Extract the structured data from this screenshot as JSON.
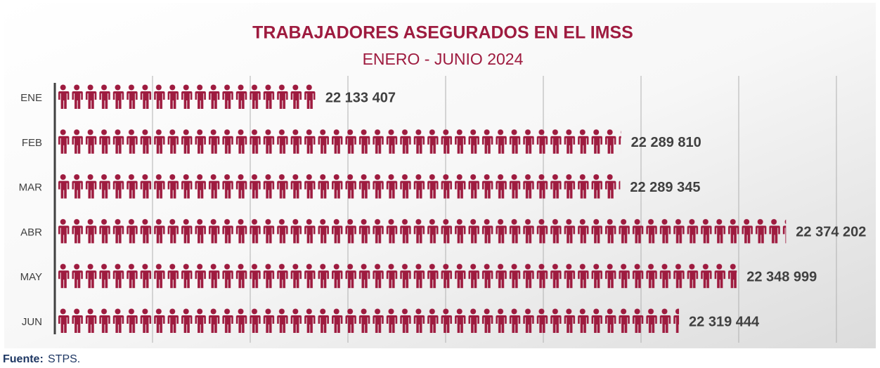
{
  "chart_data": {
    "type": "pictograph_bar",
    "title": "TRABAJADORES ASEGURADOS EN EL IMSS",
    "subtitle": "ENERO - JUNIO 2024",
    "categories": [
      "ENE",
      "FEB",
      "MAR",
      "ABR",
      "MAY",
      "JUN"
    ],
    "values": [
      22133407,
      22289810,
      22289345,
      22374202,
      22348999,
      22319444
    ],
    "value_labels": [
      "22 133 407",
      "22 289 810",
      "22 289 345",
      "22 374 202",
      "22 348 999",
      "22 319 444"
    ],
    "color": "#9e1b3f",
    "xlim": [
      22000000,
      22400000
    ],
    "xticks": [
      22000000,
      22050000,
      22100000,
      22150000,
      22200000,
      22250000,
      22300000,
      22350000,
      22400000
    ],
    "grid": true,
    "source_label": "Fuente:",
    "source": "STPS."
  }
}
